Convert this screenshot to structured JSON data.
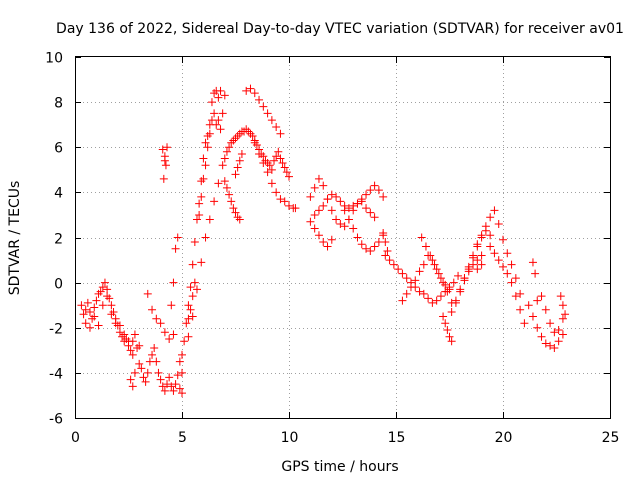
{
  "chart_data": {
    "type": "scatter",
    "title": "Day 136 of 2022, Sidereal Day-to-day VTEC variation (SDTVAR) for receiver av01",
    "xlabel": "GPS time / hours",
    "ylabel": "SDTVAR / TECUs",
    "xlim": [
      0,
      25
    ],
    "ylim": [
      -6,
      10
    ],
    "xticks": [
      0,
      5,
      10,
      15,
      20,
      25
    ],
    "yticks": [
      -6,
      -4,
      -2,
      0,
      2,
      4,
      6,
      8,
      10
    ],
    "xtick_labels": [
      "0",
      "5",
      "10",
      "15",
      "20",
      "25"
    ],
    "ytick_labels": [
      "-6",
      "-4",
      "-2",
      "0",
      "2",
      "4",
      "6",
      "8",
      "10"
    ],
    "grid": true,
    "marker": "+",
    "color": "#ff0000",
    "series": [
      {
        "name": "SDTVAR",
        "x": [
          0.3,
          0.4,
          0.5,
          0.6,
          0.7,
          0.8,
          0.9,
          1.0,
          1.1,
          1.2,
          1.3,
          1.4,
          1.5,
          1.6,
          1.7,
          1.8,
          1.9,
          2.0,
          2.1,
          2.2,
          2.3,
          2.4,
          2.5,
          2.6,
          2.7,
          2.8,
          2.9,
          3.0,
          0.5,
          0.7,
          0.9,
          1.1,
          1.3,
          1.5,
          1.7,
          1.9,
          2.1,
          2.3,
          2.5,
          2.7,
          2.6,
          2.7,
          2.8,
          3.0,
          3.1,
          3.2,
          3.3,
          3.4,
          3.5,
          3.6,
          3.7,
          3.8,
          3.9,
          4.0,
          4.1,
          4.2,
          4.3,
          4.4,
          4.5,
          4.6,
          4.7,
          4.8,
          4.9,
          5.0,
          3.4,
          3.6,
          3.8,
          4.0,
          4.2,
          4.4,
          4.6,
          4.1,
          4.2,
          4.25,
          4.3,
          4.15,
          4.2,
          4.5,
          4.6,
          4.7,
          4.8,
          4.9,
          5.0,
          5.0,
          5.1,
          5.2,
          5.3,
          5.4,
          5.5,
          5.6,
          5.7,
          5.8,
          5.9,
          6.0,
          6.1,
          6.2,
          6.3,
          6.4,
          6.5,
          6.6,
          6.7,
          6.8,
          6.9,
          7.0,
          5.3,
          5.5,
          5.7,
          5.9,
          6.1,
          6.3,
          6.5,
          6.7,
          6.9,
          5.3,
          5.4,
          5.5,
          5.6,
          5.8,
          5.9,
          6.0,
          6.1,
          6.2,
          6.3,
          6.4,
          6.5,
          6.6,
          6.7,
          6.8,
          7.0,
          7.1,
          7.2,
          7.3,
          7.4,
          7.5,
          7.6,
          7.7,
          7.8,
          7.9,
          8.0,
          8.1,
          8.2,
          8.3,
          8.4,
          8.5,
          8.6,
          8.7,
          8.8,
          8.9,
          9.0,
          9.1,
          9.2,
          9.3,
          9.4,
          9.5,
          9.6,
          9.7,
          9.8,
          9.9,
          10.0,
          7.0,
          7.1,
          7.2,
          7.3,
          7.4,
          7.5,
          7.6,
          7.7,
          8.0,
          8.2,
          8.4,
          8.6,
          8.8,
          9.0,
          9.2,
          9.4,
          9.6,
          7.5,
          7.6,
          7.7,
          7.8,
          8.4,
          8.6,
          8.8,
          9.0,
          9.2,
          9.4,
          9.6,
          9.8,
          10.0,
          10.2,
          10.3,
          11.0,
          11.2,
          11.4,
          11.6,
          11.8,
          12.0,
          12.2,
          12.4,
          12.6,
          12.8,
          13.0,
          13.2,
          13.4,
          13.6,
          13.8,
          14.0,
          14.2,
          14.4,
          11.2,
          11.4,
          11.6,
          11.8,
          12.0,
          12.2,
          12.4,
          12.6,
          12.8,
          13.0,
          13.2,
          13.4,
          13.6,
          13.8,
          14.0,
          11.0,
          11.2,
          11.4,
          11.6,
          11.8,
          12.0,
          12.6,
          12.8,
          13.0,
          13.2,
          13.4,
          13.6,
          13.8,
          14.0,
          14.2,
          14.4,
          14.4,
          14.5,
          14.6,
          14.5,
          14.7,
          14.9,
          15.1,
          15.3,
          15.5,
          15.7,
          15.9,
          16.1,
          16.3,
          16.5,
          16.7,
          16.9,
          17.1,
          17.3,
          17.5,
          17.7,
          17.9,
          15.3,
          15.5,
          15.7,
          15.9,
          16.1,
          16.3,
          16.5,
          16.7,
          16.9,
          17.1,
          17.3,
          17.5,
          16.2,
          16.4,
          16.6,
          16.8,
          17.0,
          17.2,
          17.4,
          17.6,
          17.2,
          17.3,
          17.4,
          17.5,
          17.6,
          17.6,
          17.8,
          18.0,
          18.2,
          18.4,
          18.6,
          18.8,
          19.0,
          19.2,
          19.4,
          19.6,
          19.8,
          20.0,
          20.2,
          20.4,
          20.6,
          20.8,
          17.8,
          18.0,
          18.2,
          18.4,
          18.6,
          18.8,
          19.0,
          19.2,
          19.4,
          18.2,
          18.4,
          18.6,
          18.8,
          19.0,
          18.8,
          19.0,
          19.4,
          19.6,
          19.8,
          20.0,
          20.2,
          20.4,
          20.6,
          20.8,
          21.0,
          21.4,
          21.5,
          21.6,
          21.2,
          21.4,
          21.6,
          21.8,
          22.0,
          22.2,
          22.4,
          22.6,
          22.8,
          21.8,
          22.0,
          22.2,
          22.4,
          22.6,
          22.8,
          22.7,
          22.8,
          22.9
        ],
        "y": [
          -1.0,
          -1.4,
          -1.2,
          -0.9,
          -1.3,
          -1.6,
          -1.1,
          -0.8,
          -0.5,
          -0.4,
          -0.2,
          0.0,
          -0.3,
          -0.7,
          -1.0,
          -1.3,
          -1.6,
          -1.9,
          -2.2,
          -2.4,
          -2.6,
          -2.5,
          -2.8,
          -3.0,
          -2.6,
          -2.3,
          -2.9,
          -2.8,
          -1.8,
          -2.0,
          -1.5,
          -1.9,
          -1.0,
          -0.6,
          -1.4,
          -1.8,
          -1.9,
          -2.3,
          -2.6,
          -3.2,
          -4.3,
          -4.6,
          -4.0,
          -3.6,
          -3.8,
          -4.2,
          -4.4,
          -4.0,
          -3.5,
          -3.2,
          -2.9,
          -3.5,
          -4.0,
          -4.3,
          -4.6,
          -4.8,
          -4.5,
          -4.2,
          -4.6,
          -4.8,
          -4.5,
          -4.1,
          -4.7,
          -4.9,
          -0.5,
          -1.2,
          -1.6,
          -1.8,
          -2.2,
          -2.5,
          -2.3,
          5.9,
          5.6,
          5.2,
          6.0,
          4.6,
          5.4,
          -1.0,
          0.0,
          1.5,
          2.0,
          -3.5,
          -4.0,
          -3.2,
          -2.6,
          -1.8,
          -1.0,
          -0.2,
          0.8,
          1.8,
          2.8,
          3.5,
          4.5,
          5.5,
          6.2,
          6.5,
          7.0,
          7.2,
          7.5,
          7.0,
          7.2,
          6.8,
          7.5,
          8.3,
          -2.4,
          -1.5,
          -0.3,
          0.9,
          2.0,
          2.8,
          3.6,
          4.4,
          5.2,
          -1.6,
          -1.2,
          -0.6,
          0.0,
          3.0,
          3.8,
          4.6,
          5.2,
          6.0,
          6.6,
          8.0,
          8.4,
          8.5,
          8.2,
          8.5,
          5.5,
          5.8,
          6.0,
          6.2,
          6.3,
          6.4,
          6.5,
          6.6,
          6.7,
          6.7,
          6.8,
          6.7,
          6.6,
          6.5,
          6.3,
          6.1,
          5.9,
          5.7,
          5.6,
          5.4,
          5.3,
          5.2,
          5.0,
          5.4,
          5.6,
          5.8,
          5.5,
          5.3,
          5.1,
          4.9,
          4.7,
          4.5,
          4.2,
          3.9,
          3.6,
          3.3,
          3.1,
          2.9,
          2.8,
          8.5,
          8.6,
          8.4,
          8.1,
          7.8,
          7.5,
          7.2,
          6.9,
          6.6,
          4.8,
          5.1,
          5.4,
          5.7,
          6.2,
          5.7,
          5.3,
          4.9,
          4.4,
          4.0,
          3.7,
          3.6,
          3.4,
          3.3,
          3.3,
          3.8,
          4.2,
          4.6,
          4.3,
          3.7,
          3.2,
          2.8,
          2.6,
          2.5,
          2.8,
          3.2,
          3.5,
          3.7,
          3.9,
          4.1,
          4.3,
          4.1,
          3.8,
          3.0,
          3.2,
          3.4,
          3.7,
          3.9,
          3.8,
          3.6,
          3.4,
          3.3,
          3.4,
          3.5,
          3.6,
          3.3,
          3.1,
          2.9,
          2.7,
          2.4,
          2.1,
          1.8,
          1.6,
          1.9,
          3.2,
          2.8,
          2.4,
          2.0,
          1.7,
          1.5,
          1.4,
          1.6,
          1.8,
          2.1,
          2.2,
          1.8,
          1.4,
          1.2,
          1.0,
          0.8,
          0.6,
          0.4,
          0.2,
          0.0,
          -0.2,
          -0.4,
          -0.5,
          -0.7,
          -0.9,
          -0.8,
          -0.6,
          -0.4,
          -0.2,
          0.0,
          0.3,
          -0.8,
          -0.5,
          -0.2,
          0.1,
          0.5,
          0.8,
          1.2,
          1.0,
          0.6,
          0.2,
          -0.1,
          -0.3,
          2.0,
          1.6,
          1.2,
          0.8,
          0.4,
          0.0,
          -0.4,
          -0.9,
          -1.5,
          -1.8,
          -2.1,
          -2.4,
          -2.6,
          -1.3,
          -0.8,
          -0.3,
          0.2,
          0.7,
          1.2,
          1.7,
          2.1,
          2.5,
          2.9,
          3.2,
          2.6,
          1.9,
          1.3,
          0.8,
          0.2,
          -0.5,
          -0.9,
          -0.4,
          0.1,
          0.6,
          1.1,
          1.6,
          2.0,
          2.3,
          2.1,
          0.2,
          0.5,
          0.8,
          1.0,
          1.2,
          0.6,
          0.8,
          1.6,
          1.3,
          1.0,
          0.7,
          0.4,
          0.0,
          -0.6,
          -1.2,
          -1.8,
          0.9,
          0.4,
          -0.8,
          -1.0,
          -1.5,
          -2.0,
          -2.4,
          -2.7,
          -2.8,
          -2.9,
          -2.6,
          -2.3,
          -0.6,
          -1.2,
          -1.8,
          -2.2,
          -2.1,
          -1.6,
          -0.6,
          -1.0,
          -1.4
        ]
      }
    ]
  }
}
